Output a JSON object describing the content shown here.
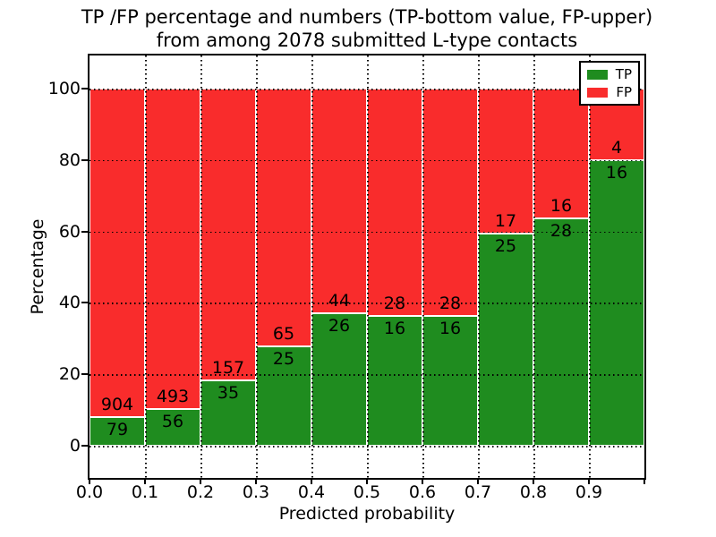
{
  "title": {
    "line1": "TP /FP percentage and numbers (TP-bottom value, FP-upper)",
    "line2": "from among 2078 submitted L-type contacts"
  },
  "y_axis": {
    "label": "Percentage",
    "ticks": [
      "0",
      "20",
      "40",
      "60",
      "80",
      "100"
    ]
  },
  "x_axis": {
    "label": "Predicted probability",
    "ticks": [
      "0.0",
      "0.1",
      "0.2",
      "0.3",
      "0.4",
      "0.5",
      "0.6",
      "0.7",
      "0.8",
      "0.9"
    ]
  },
  "legend": {
    "items": [
      {
        "label": "TP",
        "color": "#1F8C1F"
      },
      {
        "label": "FP",
        "color": "#F92C2C"
      }
    ]
  },
  "colors": {
    "tp_green": "#1F8C1F",
    "fp_red": "#F92C2C",
    "grid": "#000000",
    "frame": "#000000",
    "background": "#FFFFFF"
  },
  "chart_data": {
    "type": "bar",
    "stacked": true,
    "title": "TP /FP percentage and numbers (TP-bottom value, FP-upper) from among 2078 submitted L-type contacts",
    "xlabel": "Predicted probability",
    "ylabel": "Percentage",
    "grid": "dotted, drawn over bars",
    "legend_position": "upper right",
    "total_contacts": 2078,
    "bin_edges": [
      0.0,
      0.1,
      0.2,
      0.3,
      0.4,
      0.5,
      0.6,
      0.7,
      0.8,
      0.9,
      1.0
    ],
    "series": [
      {
        "name": "TP",
        "counts": [
          79,
          56,
          35,
          25,
          26,
          16,
          16,
          25,
          28,
          16
        ],
        "percent": [
          8.04,
          10.2,
          18.23,
          27.78,
          37.14,
          36.36,
          36.36,
          59.52,
          63.64,
          80.0
        ]
      },
      {
        "name": "FP",
        "counts": [
          904,
          493,
          157,
          65,
          44,
          28,
          28,
          17,
          16,
          4
        ],
        "percent": [
          91.96,
          89.8,
          81.77,
          72.22,
          62.86,
          63.64,
          63.64,
          40.48,
          36.36,
          20.0
        ]
      }
    ],
    "percent_ylim": [
      0,
      100
    ],
    "axis_ylim": [
      -9,
      109.3
    ]
  }
}
